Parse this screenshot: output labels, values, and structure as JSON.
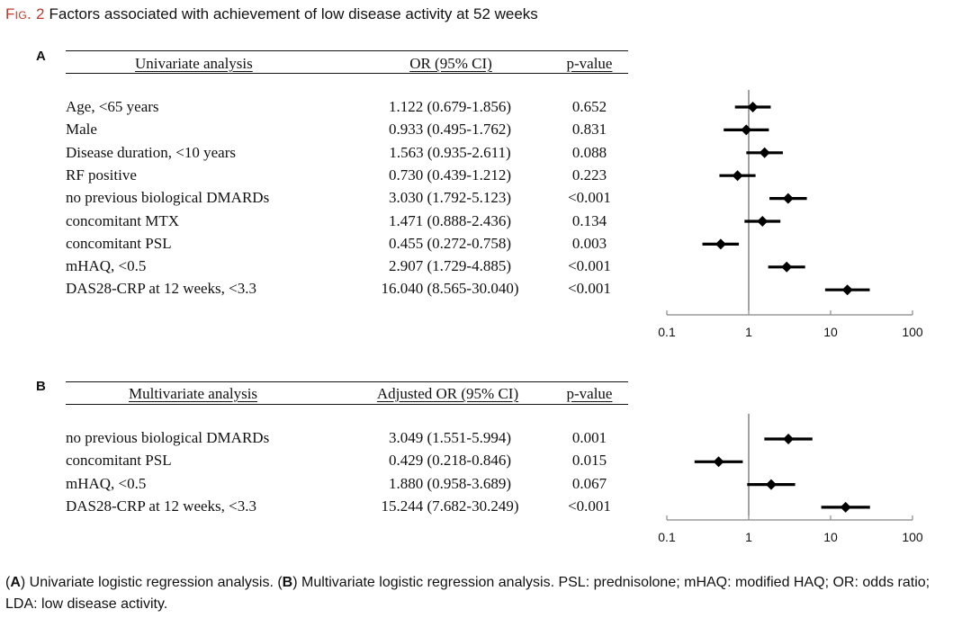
{
  "figure": {
    "label": "Fig. 2",
    "title": "Factors associated with achievement of low disease activity at 52 weeks"
  },
  "panels": [
    {
      "letter": "A",
      "headers": {
        "factor": "Univariate analysis",
        "or": "OR (95% CI)",
        "p": "p-value"
      },
      "rows": [
        {
          "factor": "Age, <65 years",
          "or_ci": "1.122 (0.679-1.856)",
          "p": "0.652"
        },
        {
          "factor": "Male",
          "or_ci": "0.933 (0.495-1.762)",
          "p": "0.831"
        },
        {
          "factor": "Disease duration, <10 years",
          "or_ci": "1.563 (0.935-2.611)",
          "p": "0.088"
        },
        {
          "factor": "RF positive",
          "or_ci": "0.730 (0.439-1.212)",
          "p": "0.223"
        },
        {
          "factor": "no previous biological DMARDs",
          "or_ci": "3.030 (1.792-5.123)",
          "p": "<0.001"
        },
        {
          "factor": "concomitant MTX",
          "or_ci": "1.471 (0.888-2.436)",
          "p": "0.134"
        },
        {
          "factor": "concomitant PSL",
          "or_ci": "0.455 (0.272-0.758)",
          "p": "0.003"
        },
        {
          "factor": "mHAQ, <0.5",
          "or_ci": "2.907 (1.729-4.885)",
          "p": "<0.001"
        },
        {
          "factor": "DAS28-CRP at 12 weeks, <3.3",
          "or_ci": "16.040 (8.565-30.040)",
          "p": "<0.001"
        }
      ]
    },
    {
      "letter": "B",
      "headers": {
        "factor": "Multivariate analysis",
        "or": "Adjusted OR (95% CI)",
        "p": "p-value"
      },
      "rows": [
        {
          "factor": "no previous biological DMARDs",
          "or_ci": "3.049 (1.551-5.994)",
          "p": "0.001"
        },
        {
          "factor": "concomitant PSL",
          "or_ci": "0.429 (0.218-0.846)",
          "p": "0.015"
        },
        {
          "factor": "mHAQ, <0.5",
          "or_ci": "1.880 (0.958-3.689)",
          "p": "0.067"
        },
        {
          "factor": "DAS28-CRP at 12 weeks, <3.3",
          "or_ci": "15.244 (7.682-30.249)",
          "p": "<0.001"
        }
      ]
    }
  ],
  "chart_data": [
    {
      "type": "scatter",
      "panel": "A",
      "x_scale": "log",
      "xlim": [
        0.1,
        100
      ],
      "x_ticks": [
        "0.1",
        "1",
        "10",
        "100"
      ],
      "reference_line": 1,
      "points": [
        {
          "or": 1.122,
          "lo": 0.679,
          "hi": 1.856
        },
        {
          "or": 0.933,
          "lo": 0.495,
          "hi": 1.762
        },
        {
          "or": 1.563,
          "lo": 0.935,
          "hi": 2.611
        },
        {
          "or": 0.73,
          "lo": 0.439,
          "hi": 1.212
        },
        {
          "or": 3.03,
          "lo": 1.792,
          "hi": 5.123
        },
        {
          "or": 1.471,
          "lo": 0.888,
          "hi": 2.436
        },
        {
          "or": 0.455,
          "lo": 0.272,
          "hi": 0.758
        },
        {
          "or": 2.907,
          "lo": 1.729,
          "hi": 4.885
        },
        {
          "or": 16.04,
          "lo": 8.565,
          "hi": 30.04
        }
      ]
    },
    {
      "type": "scatter",
      "panel": "B",
      "x_scale": "log",
      "xlim": [
        0.1,
        100
      ],
      "x_ticks": [
        "0.1",
        "1",
        "10",
        "100"
      ],
      "reference_line": 1,
      "points": [
        {
          "or": 3.049,
          "lo": 1.551,
          "hi": 5.994
        },
        {
          "or": 0.429,
          "lo": 0.218,
          "hi": 0.846
        },
        {
          "or": 1.88,
          "lo": 0.958,
          "hi": 3.689
        },
        {
          "or": 15.244,
          "lo": 7.682,
          "hi": 30.249
        }
      ]
    }
  ],
  "caption": {
    "a_letter": "A",
    "a_text": "Univariate logistic regression analysis. (",
    "b_letter": "B",
    "rest": "Multivariate logistic regression analysis. PSL: prednisolone; mHAQ: modified HAQ; OR: odds ratio; LDA: low disease activity."
  }
}
